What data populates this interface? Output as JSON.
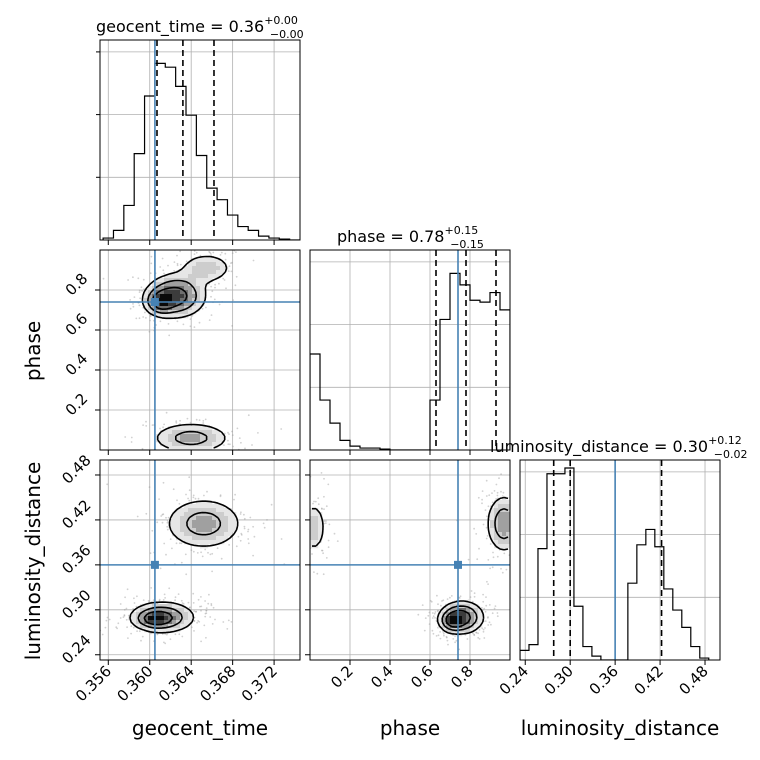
{
  "chart_data": {
    "type": "corner",
    "parameters": [
      "geocent_time",
      "phase",
      "luminosity_distance"
    ],
    "truths": [
      0.3605,
      0.74,
      0.36
    ],
    "colors": {
      "truth": "#4682b4",
      "hist": "#000000",
      "grid": "#b0b0b0",
      "contour": "#000000"
    },
    "grid": true,
    "titles": [
      {
        "name": "geocent_time",
        "value": "0.36",
        "plus": "+0.00",
        "minus": "−0.00"
      },
      {
        "name": "phase",
        "value": "0.78",
        "plus": "+0.15",
        "minus": "−0.15"
      },
      {
        "name": "luminosity_distance",
        "value": "0.30",
        "plus": "+0.12",
        "minus": "−0.02"
      }
    ],
    "ranges": {
      "geocent_time": [
        0.3552,
        0.3745
      ],
      "phase": [
        0.0,
        1.0
      ],
      "luminosity_distance": [
        0.233,
        0.5
      ]
    },
    "ticks": {
      "geocent_time": [
        0.356,
        0.36,
        0.364,
        0.368,
        0.372
      ],
      "phase": [
        0.2,
        0.4,
        0.6,
        0.8
      ],
      "luminosity_distance": [
        0.24,
        0.3,
        0.36,
        0.42,
        0.48
      ]
    },
    "tick_labels": {
      "geocent_time": [
        "0.356",
        "0.360",
        "0.364",
        "0.368",
        "0.372"
      ],
      "phase": [
        "0.2",
        "0.4",
        "0.6",
        "0.8"
      ],
      "luminosity_distance": [
        "0.24",
        "0.30",
        "0.36",
        "0.42",
        "0.48"
      ]
    },
    "quantiles": {
      "geocent_time": [
        0.3607,
        0.3632,
        0.3662
      ],
      "phase": [
        0.63,
        0.78,
        0.93
      ],
      "luminosity_distance": [
        0.278,
        0.3,
        0.422
      ]
    },
    "histograms": {
      "geocent_time": {
        "edges": [
          0.3555,
          0.3565,
          0.3575,
          0.3585,
          0.3595,
          0.3605,
          0.3615,
          0.3625,
          0.3635,
          0.3645,
          0.3655,
          0.3665,
          0.3675,
          0.3685,
          0.3695,
          0.3705,
          0.3715,
          0.3725,
          0.3735,
          0.3745
        ],
        "counts": [
          0.01,
          0.05,
          0.18,
          0.45,
          0.75,
          0.92,
          0.9,
          0.8,
          0.65,
          0.44,
          0.27,
          0.21,
          0.13,
          0.07,
          0.05,
          0.02,
          0.01,
          0.005,
          0.0
        ],
        "max": 1.0
      },
      "phase": {
        "edges": [
          0.0,
          0.05,
          0.1,
          0.15,
          0.2,
          0.25,
          0.3,
          0.35,
          0.4,
          0.45,
          0.5,
          0.55,
          0.6,
          0.65,
          0.7,
          0.75,
          0.8,
          0.85,
          0.9,
          0.95,
          1.0
        ],
        "counts": [
          0.5,
          0.26,
          0.14,
          0.05,
          0.02,
          0.01,
          0.01,
          0.005,
          0.0,
          0.0,
          0.0,
          0.0,
          0.26,
          0.68,
          0.92,
          0.86,
          0.78,
          0.77,
          0.82,
          0.73
        ],
        "max": 1.0
      },
      "luminosity_distance": {
        "edges": [
          0.233,
          0.245,
          0.257,
          0.269,
          0.281,
          0.293,
          0.305,
          0.317,
          0.329,
          0.341,
          0.353,
          0.365,
          0.377,
          0.389,
          0.401,
          0.413,
          0.425,
          0.437,
          0.449,
          0.461,
          0.473,
          0.485
        ],
        "counts": [
          0.05,
          0.08,
          0.58,
          0.97,
          0.97,
          1.0,
          0.28,
          0.07,
          0.02,
          0.0,
          0.0,
          0.0,
          0.4,
          0.6,
          0.68,
          0.59,
          0.37,
          0.26,
          0.17,
          0.07,
          0.01
        ],
        "max": 1.0
      }
    },
    "pairs": [
      {
        "x": "geocent_time",
        "y": "phase",
        "blobs": [
          {
            "cx": 0.3625,
            "cy": 0.77,
            "sx": 0.0016,
            "sy": 0.06,
            "w": 1.0
          },
          {
            "cx": 0.361,
            "cy": 0.74,
            "sx": 0.0008,
            "sy": 0.035,
            "w": 0.7
          },
          {
            "cx": 0.3655,
            "cy": 0.91,
            "sx": 0.0015,
            "sy": 0.045,
            "w": 0.45
          },
          {
            "cx": 0.364,
            "cy": 0.06,
            "sx": 0.0022,
            "sy": 0.045,
            "w": 0.6
          }
        ],
        "levels": [
          0.15,
          0.35,
          0.6
        ]
      },
      {
        "x": "phase",
        "y": "luminosity_distance",
        "blobs": [
          {
            "cx": 0.76,
            "cy": 0.29,
            "sx": 0.06,
            "sy": 0.012,
            "w": 1.0
          },
          {
            "cx": 0.71,
            "cy": 0.285,
            "sx": 0.035,
            "sy": 0.008,
            "w": 0.6
          },
          {
            "cx": 0.97,
            "cy": 0.415,
            "sx": 0.05,
            "sy": 0.022,
            "w": 0.7
          },
          {
            "cx": 0.02,
            "cy": 0.41,
            "sx": 0.035,
            "sy": 0.02,
            "w": 0.45
          }
        ],
        "levels": [
          0.15,
          0.35,
          0.6
        ]
      },
      {
        "x": "geocent_time",
        "y": "luminosity_distance",
        "blobs": [
          {
            "cx": 0.3612,
            "cy": 0.29,
            "sx": 0.0018,
            "sy": 0.012,
            "w": 1.0
          },
          {
            "cx": 0.3605,
            "cy": 0.288,
            "sx": 0.0009,
            "sy": 0.006,
            "w": 0.7
          },
          {
            "cx": 0.3652,
            "cy": 0.415,
            "sx": 0.0022,
            "sy": 0.02,
            "w": 0.75
          }
        ],
        "levels": [
          0.15,
          0.35,
          0.6
        ]
      }
    ]
  }
}
